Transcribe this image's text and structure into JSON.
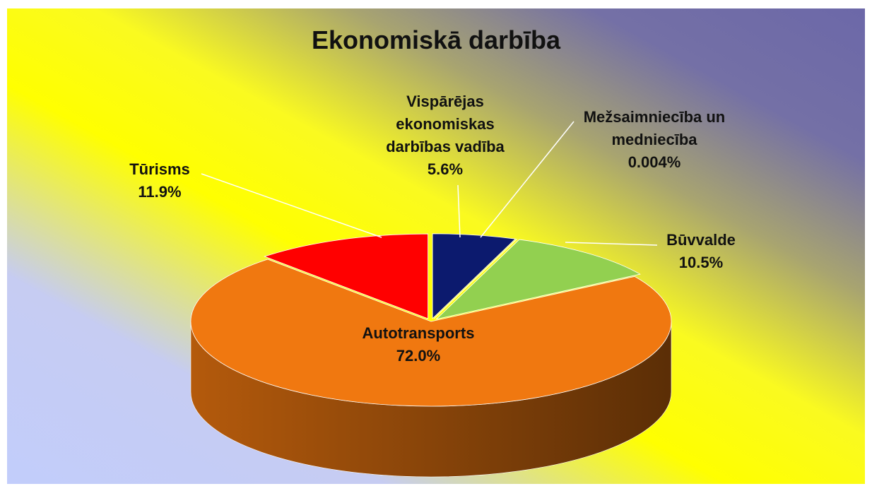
{
  "chart_data": {
    "type": "pie",
    "title": "Ekonomiskā darbība",
    "categories": [
      "Vispārējas ekonomiskas darbības vadība",
      "Mežsaimniecība un medniecība",
      "Būvvalde",
      "Autotransports",
      "Tūrisms"
    ],
    "values": [
      5.6,
      0.004,
      10.5,
      72.0,
      11.9
    ],
    "value_labels": [
      "5.6%",
      "0.004%",
      "10.5%",
      "72.0%",
      "11.9%"
    ],
    "colors": [
      "#0c1a6e",
      "#1ba3a3",
      "#92d050",
      "#f07810",
      "#ff0000"
    ]
  }
}
